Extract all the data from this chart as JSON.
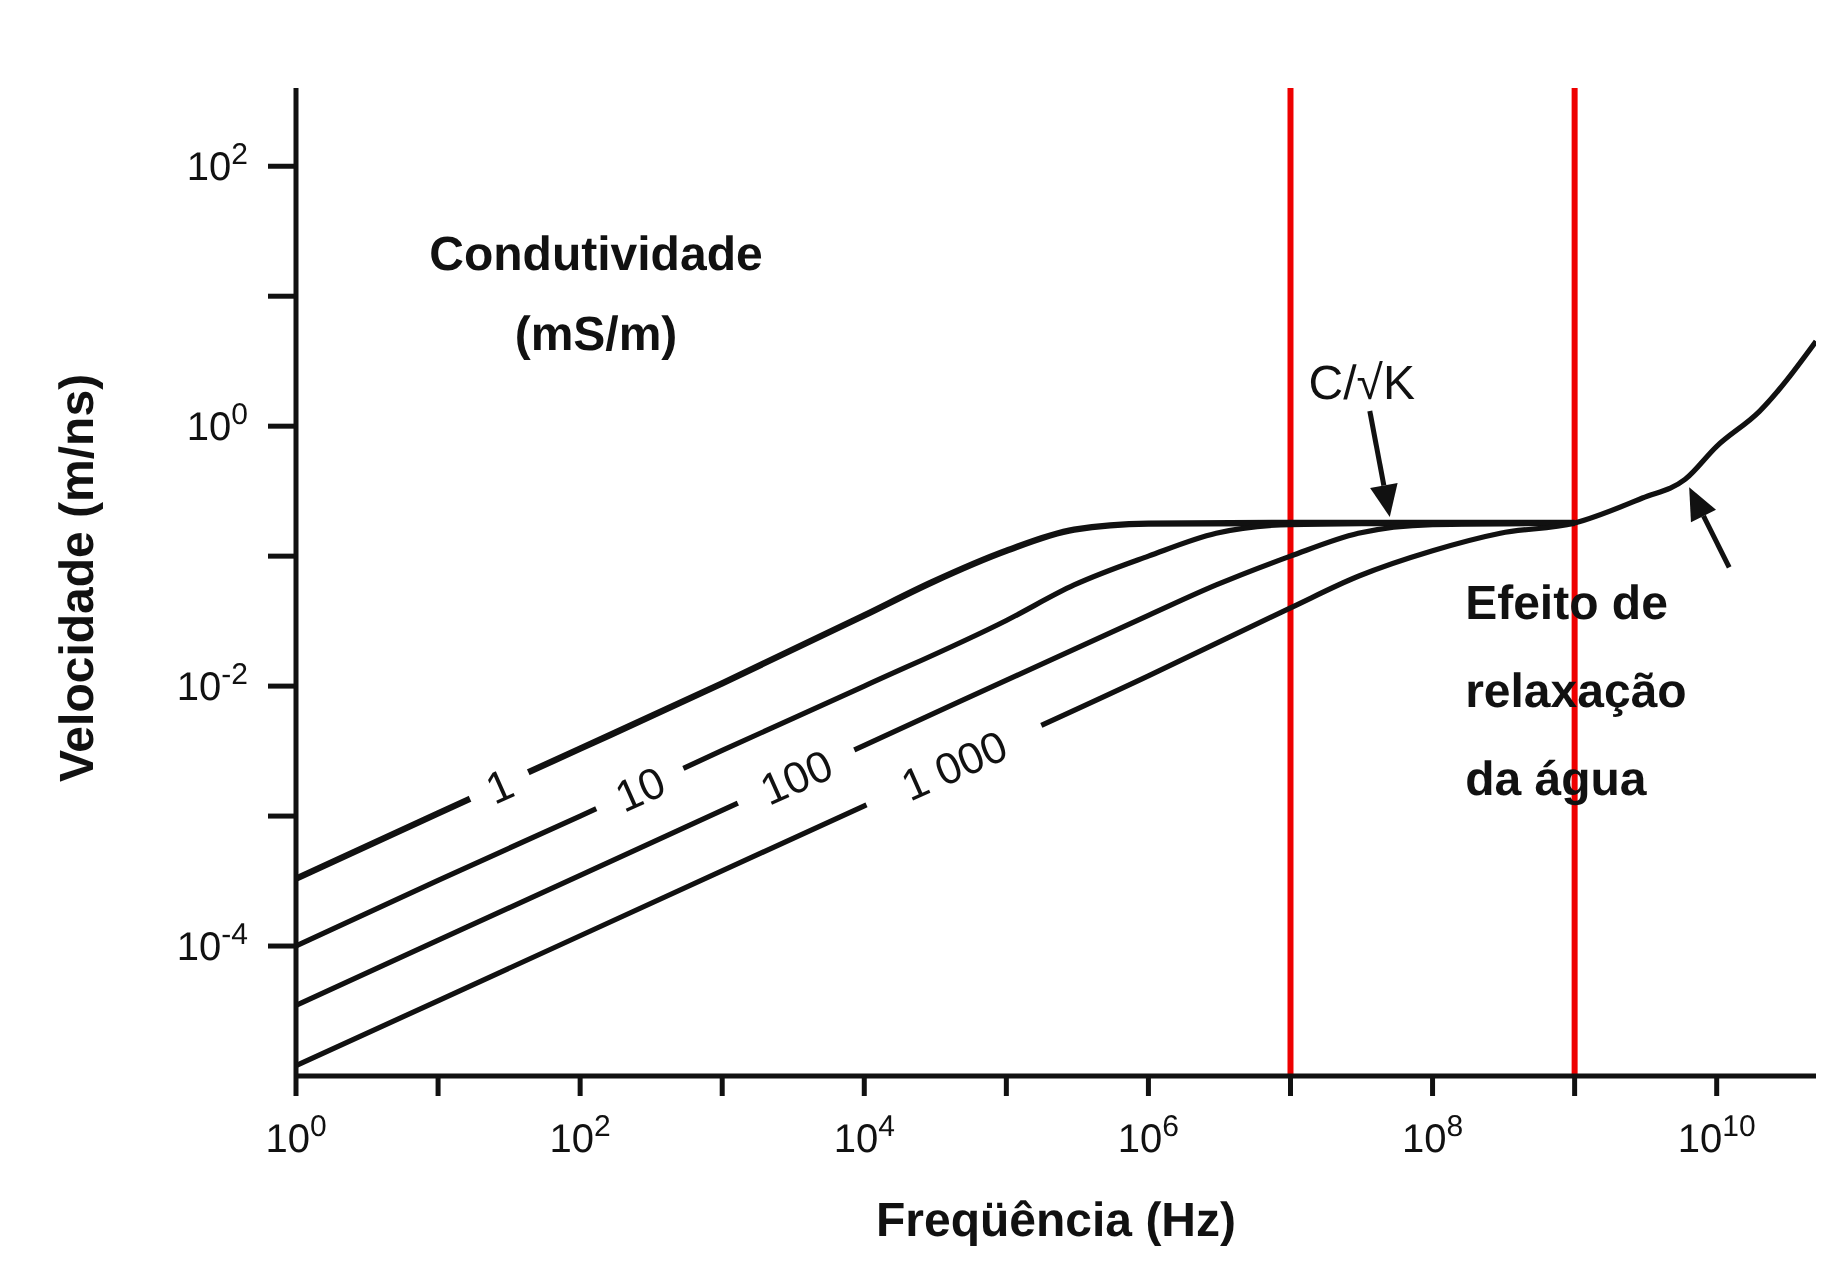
{
  "chart_data": {
    "type": "line",
    "xlabel": "Freqüência (Hz)",
    "ylabel": "Velocidade (m/ns)",
    "log": "xy",
    "grid": false,
    "legend": false,
    "marker": "none",
    "line_style": "solid",
    "xlim": [
      1,
      50000000000
    ],
    "ylim": [
      1e-05,
      400
    ],
    "xticks": [
      {
        "value": 1,
        "label": "10$^{0}$"
      },
      {
        "value": 10,
        "label": null
      },
      {
        "value": 100,
        "label": "10$^{2}$"
      },
      {
        "value": 1000,
        "label": null
      },
      {
        "value": 10000,
        "label": "10$^{4}$"
      },
      {
        "value": 100000,
        "label": null
      },
      {
        "value": 1000000,
        "label": "10$^{6}$"
      },
      {
        "value": 10000000,
        "label": null
      },
      {
        "value": 100000000,
        "label": "10$^{8}$"
      },
      {
        "value": 1000000000,
        "label": null
      },
      {
        "value": 10000000000,
        "label": "10$^{10}$"
      }
    ],
    "yticks": [
      {
        "value": 0.0001,
        "label": "10$^{-4}$"
      },
      {
        "value": 0.001,
        "label": null
      },
      {
        "value": 0.01,
        "label": "10$^{-2}$"
      },
      {
        "value": 0.1,
        "label": null
      },
      {
        "value": 1,
        "label": "10$^{0}$"
      },
      {
        "value": 10,
        "label": null
      },
      {
        "value": 100,
        "label": "10$^{2}$"
      }
    ],
    "series": [
      {
        "name": "1",
        "color": "#111111",
        "x": [
          1,
          10,
          100,
          1000,
          10000,
          30000,
          100000,
          300000,
          1000000,
          10000000,
          100000000,
          1000000000
        ],
        "values": [
          0.00033,
          0.00105,
          0.0033,
          0.0105,
          0.035,
          0.063,
          0.11,
          0.16,
          0.178,
          0.18,
          0.18,
          0.18
        ]
      },
      {
        "name": "10",
        "color": "#111111",
        "x": [
          1,
          10,
          100,
          1000,
          10000,
          100000,
          300000,
          1000000,
          3000000,
          10000000,
          100000000,
          1000000000
        ],
        "values": [
          0.0001,
          0.00032,
          0.001,
          0.0032,
          0.01,
          0.032,
          0.06,
          0.1,
          0.15,
          0.175,
          0.18,
          0.18
        ]
      },
      {
        "name": "100",
        "color": "#111111",
        "x": [
          1,
          100,
          10000,
          1000000,
          3000000,
          10000000,
          30000000,
          100000000,
          1000000000
        ],
        "values": [
          3.5e-05,
          0.00035,
          0.0035,
          0.035,
          0.06,
          0.1,
          0.15,
          0.175,
          0.18
        ]
      },
      {
        "name": "1 000",
        "color": "#111111",
        "x": [
          1,
          100,
          10000,
          1000000,
          10000000,
          30000000,
          100000000,
          300000000,
          1000000000,
          3000000000,
          6000000000,
          10000000000,
          20000000000,
          50000000000
        ],
        "values": [
          1.2e-05,
          0.00012,
          0.0012,
          0.012,
          0.04,
          0.07,
          0.11,
          0.15,
          0.18,
          0.28,
          0.39,
          0.7,
          1.3,
          4.5
        ]
      }
    ],
    "ref_lines": [
      {
        "axis": "x",
        "value": 10000000,
        "color": "#ee0000"
      },
      {
        "axis": "x",
        "value": 1000000000,
        "color": "#ee0000"
      }
    ],
    "annotations": [
      "Condutividade (mS/m)",
      {
        "text": "C/√K",
        "x": 50000000,
        "y": 0.18
      },
      {
        "text": "Efeito de relaxação da água",
        "x": 6000000000,
        "y": 0.39
      }
    ]
  }
}
